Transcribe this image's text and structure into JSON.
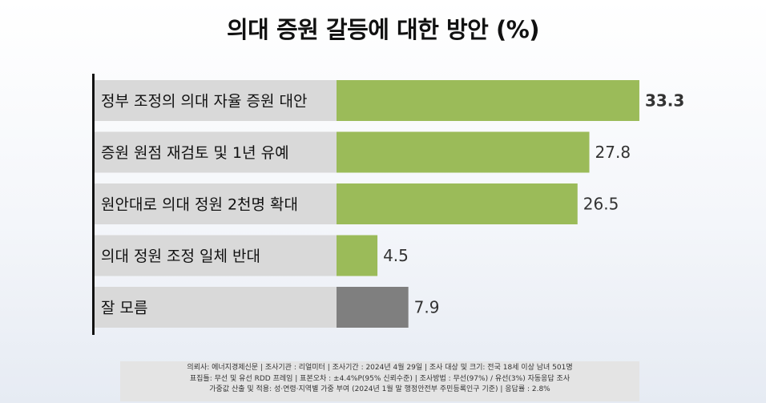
{
  "title": "의대 증원 갈등에 대한 방안 (%)",
  "colors": {
    "bar": "#9bbb59",
    "bar_other": "#7f7f7f",
    "label_bg": "#d9d9d9",
    "axis": "#111111"
  },
  "chart_data": {
    "type": "bar",
    "orientation": "horizontal",
    "title": "의대 증원 갈등에 대한 방안 (%)",
    "categories": [
      "정부 조정의 의대 자율 증원 대안",
      "증원 원점 재검토 및 1년 유예",
      "원안대로 의대 정원 2천명 확대",
      "의대 정원 조정 일체 반대",
      "잘 모름"
    ],
    "values": [
      33.3,
      27.8,
      26.5,
      4.5,
      7.9
    ],
    "value_labels": [
      "33.3",
      "27.8",
      "26.5",
      "4.5",
      "7.9"
    ],
    "highlight_index": 0,
    "xlim": [
      0,
      35
    ],
    "grid": false,
    "legend": "none"
  },
  "footer": {
    "line1": "의뢰사: 에너지경제신문 | 조사기관 : 리얼미터  |  조사기간 : 2024년 4월 29일 | 조사 대상 및 크기: 전국 18세 이상 남녀 501명",
    "line2": "표집틀: 무선 및 유선 RDD 프레임 | 표본오차 : ±4.4%P(95%  신뢰수준) | 조사방법 : 무선(97%) / 유선(3%) 자동응답 조사",
    "line3": "가중값 산출 및 적용: 성·연령·지역별  가중 부여 (2024년 1월 말 행정안전부  주민등록인구  기준) | 응답률 : 2.8%"
  }
}
